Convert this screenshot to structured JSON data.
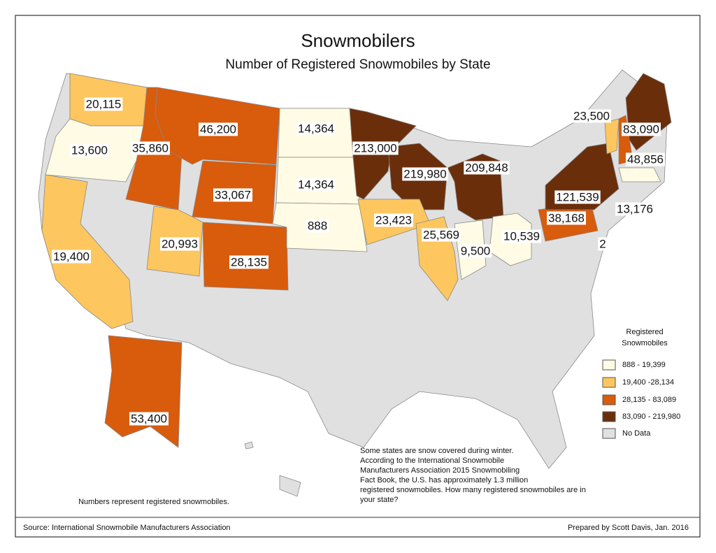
{
  "header": {
    "title": "Snowmobilers",
    "subtitle": "Number of Registered Snowmobiles by State"
  },
  "states": [
    {
      "label": "20,115"
    },
    {
      "label": "13,600"
    },
    {
      "label": "35,860"
    },
    {
      "label": "46,200"
    },
    {
      "label": "14,364"
    },
    {
      "label": "14,364"
    },
    {
      "label": "33,067"
    },
    {
      "label": "888"
    },
    {
      "label": "20,993"
    },
    {
      "label": "28,135"
    },
    {
      "label": "19,400"
    },
    {
      "label": "213,000"
    },
    {
      "label": "219,980"
    },
    {
      "label": "209,848"
    },
    {
      "label": "23,423"
    },
    {
      "label": "25,569"
    },
    {
      "label": "9,500"
    },
    {
      "label": "10,539"
    },
    {
      "label": "38,168"
    },
    {
      "label": "121,539"
    },
    {
      "label": "13,176"
    },
    {
      "label": "23,500"
    },
    {
      "label": "83,090"
    },
    {
      "label": "48,856"
    },
    {
      "label": "53,400"
    },
    {
      "label": "2"
    }
  ],
  "legend": {
    "title_lines": [
      "Registered",
      "Snowmobiles"
    ],
    "entries": [
      "888 - 19,399",
      "19,400 -28,134",
      "28,135 - 83,089",
      "83,090 - 219,980",
      "No Data"
    ]
  },
  "note_lines": [
    "Some states are snow covered during winter.",
    "According to the International Snowmobile",
    "Manufacturers Association 2015 Snowmobiling",
    "Fact Book, the U.S. has approximately 1.3 million",
    "registered snowmobiles.  How many registered snowmobiles are in",
    "your state?"
  ],
  "numbers_note": "Numbers represent registered snowmobiles.",
  "source": "Source: International Snowmobile Manufacturers Association",
  "credit": "Prepared by Scott Davis, Jan. 2016"
}
